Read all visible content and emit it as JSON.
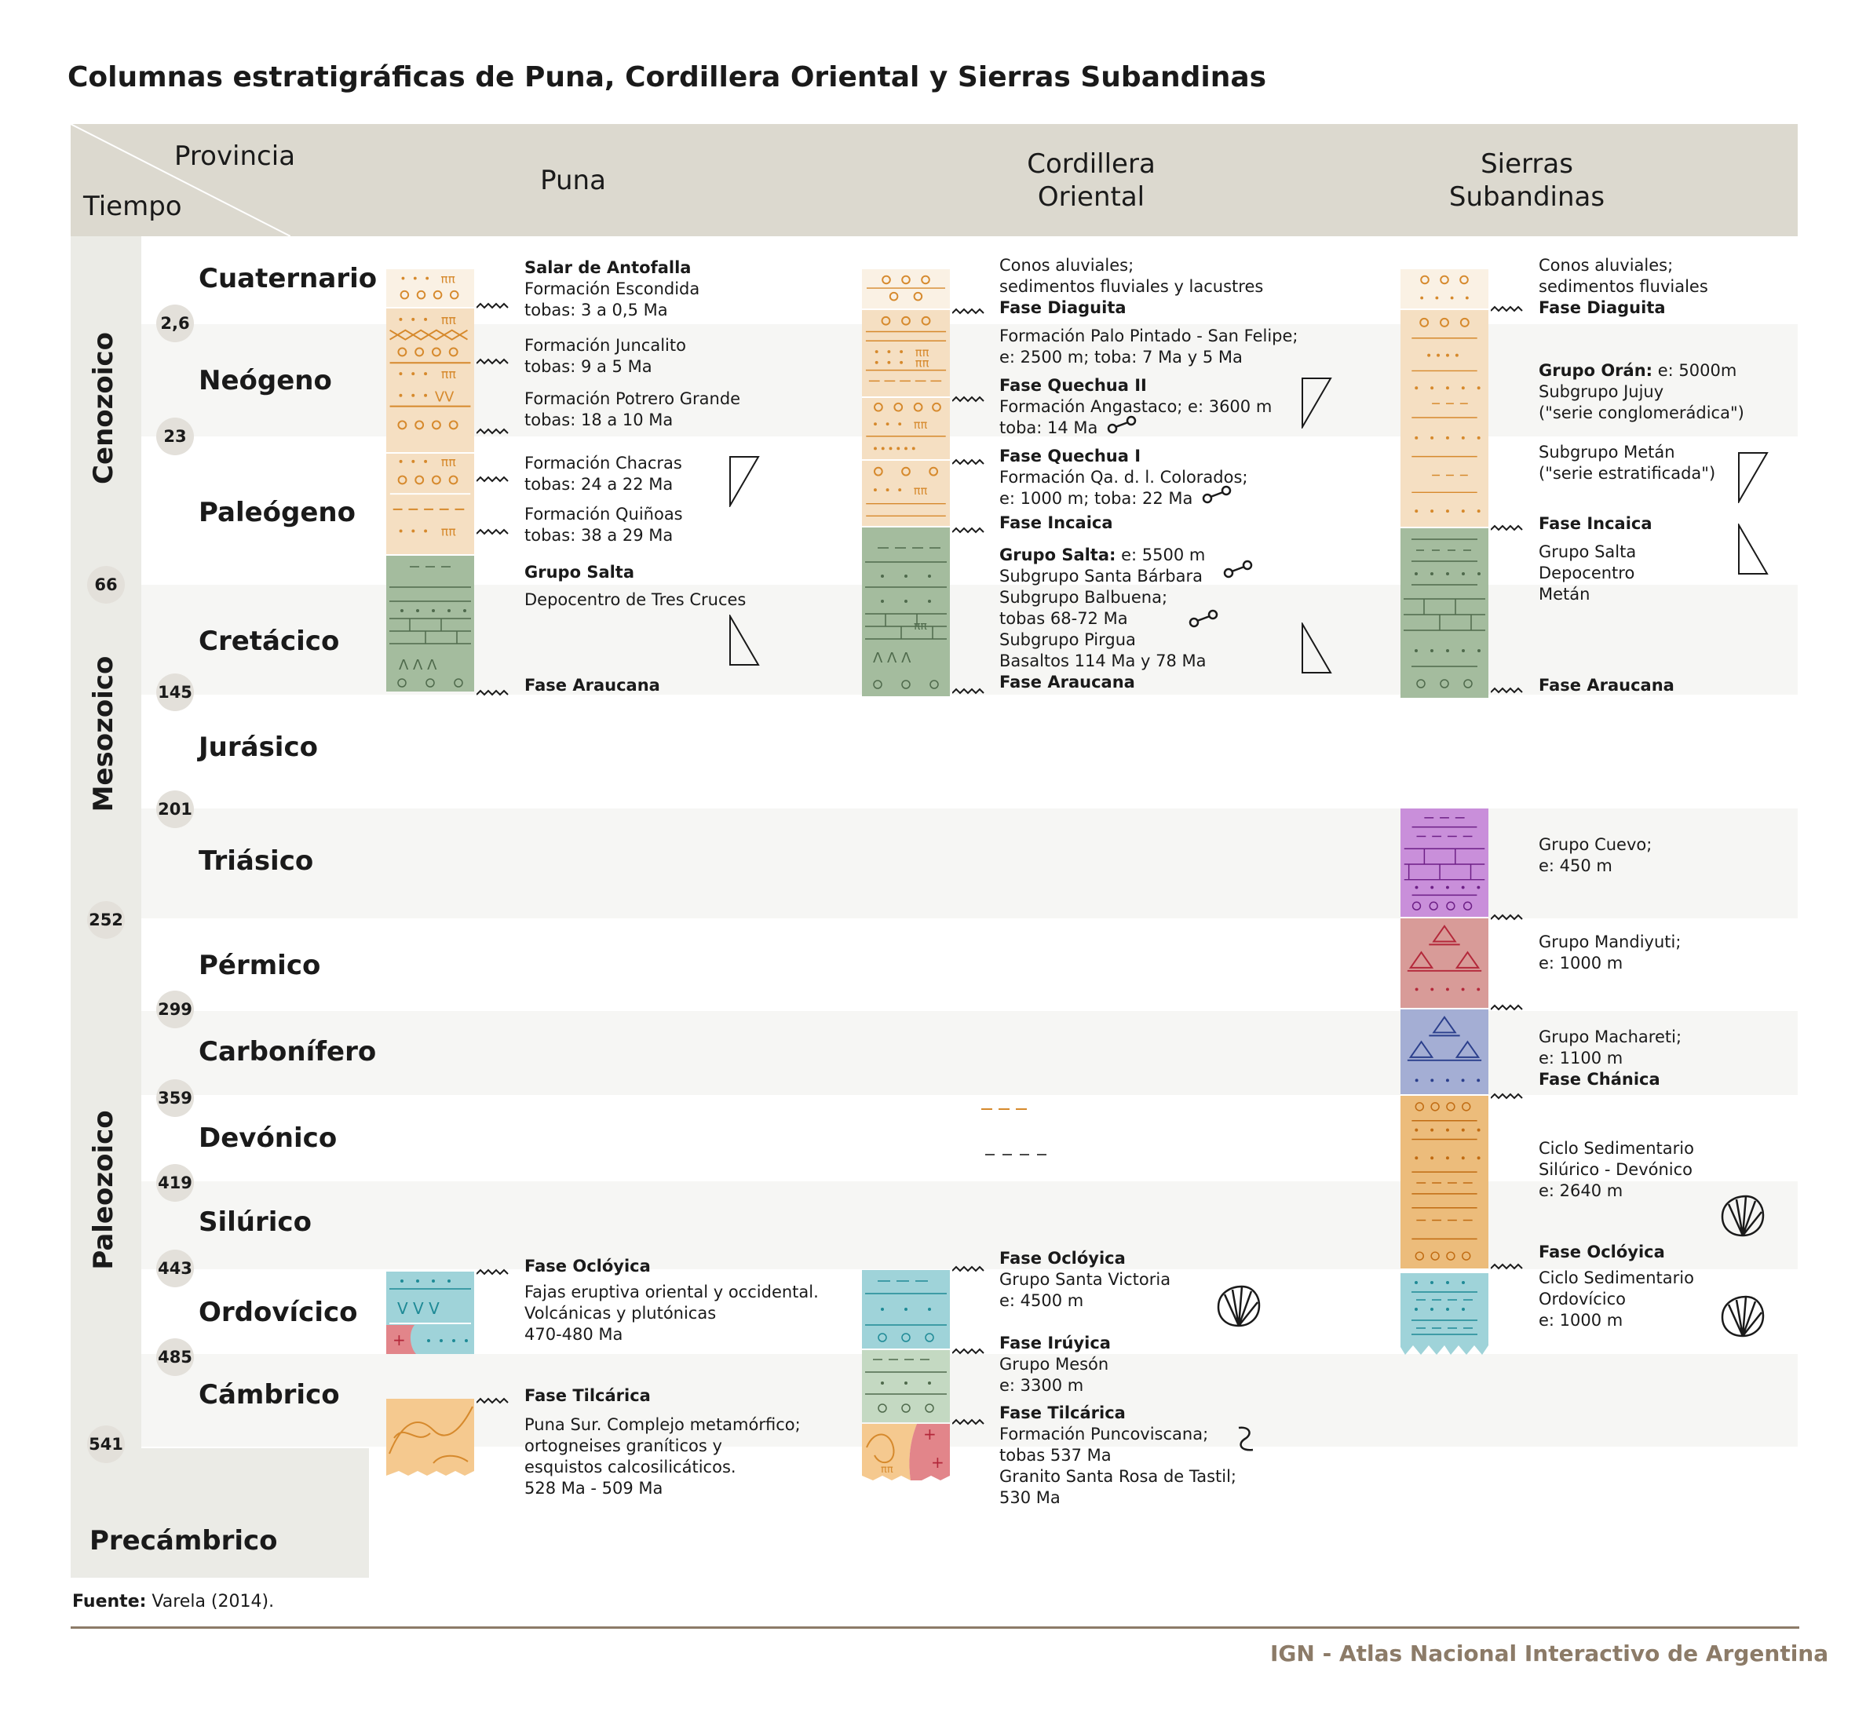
{
  "title": "Columnas estratigráficas de Puna, Cordillera Oriental y Sierras Subandinas",
  "header": {
    "provincia": "Provincia",
    "tiempo": "Tiempo",
    "puna": "Puna",
    "cordillera_1": "Cordillera",
    "cordillera_2": "Oriental",
    "sierras_1": "Sierras",
    "sierras_2": "Subandinas"
  },
  "eras": {
    "cenozoico": "Cenozoico",
    "mesozoico": "Mesozoico",
    "paleozoico": "Paleozoico",
    "precambrico": "Precámbrico"
  },
  "periods": {
    "cuaternario": "Cuaternario",
    "neogeno": "Neógeno",
    "paleogeno": "Paleógeno",
    "cretacico": "Cretácico",
    "jurasico": "Jurásico",
    "triasico": "Triásico",
    "permico": "Pérmico",
    "carbonifero": "Carbonífero",
    "devonico": "Devónico",
    "silurico": "Silúrico",
    "ordovicico": "Ordovícico",
    "cambrico": "Cámbrico"
  },
  "boundaries": {
    "b2_6": "2,6",
    "b23": "23",
    "b66": "66",
    "b145": "145",
    "b201": "201",
    "b252": "252",
    "b299": "299",
    "b359": "359",
    "b419": "419",
    "b443": "443",
    "b485": "485",
    "b541": "541"
  },
  "puna": {
    "l1": "Salar de Antofalla",
    "l2": "Formación Escondida",
    "l3": "tobas: 3 a 0,5 Ma",
    "l4": "Formación Juncalito",
    "l5": "tobas: 9 a 5 Ma",
    "l6": "Formación Potrero Grande",
    "l7": "tobas: 18 a 10 Ma",
    "l8": "Formación Chacras",
    "l9": "tobas: 24 a 22 Ma",
    "l10": "Formación Quiñoas",
    "l11": "tobas: 38 a 29 Ma",
    "l12": "Grupo Salta",
    "l13": "Depocentro de Tres Cruces",
    "l14": "Fase Araucana",
    "l15": "Fase Oclóyica",
    "l16": "Fajas eruptiva oriental y occidental.",
    "l17": "Volcánicas y plutónicas",
    "l18": "470-480 Ma",
    "l19": "Fase Tilcárica",
    "l20": "Puna Sur. Complejo metamórfico;",
    "l21": "ortogneises graníticos y",
    "l22": "esquistos calcosilicáticos.",
    "l23": "528 Ma - 509 Ma"
  },
  "cordillera": {
    "l1": "Conos aluviales;",
    "l2": "sedimentos fluviales y lacustres",
    "l3": "Fase Diaguita",
    "l4": "Formación Palo Pintado - San Felipe;",
    "l5": "e: 2500 m; toba: 7 Ma y 5 Ma",
    "l6": "Fase Quechua II",
    "l7": "Formación Angastaco; e: 3600 m",
    "l8": "toba: 14 Ma",
    "l9": "Fase Quechua I",
    "l10": "Formación Qa. d. l. Colorados;",
    "l11": "e: 1000 m; toba: 22 Ma",
    "l12": "Fase Incaica",
    "l13a": "Grupo Salta:",
    "l13b": " e: 5500 m",
    "l14": "Subgrupo Santa Bárbara",
    "l15": "Subgrupo Balbuena;",
    "l16": "tobas 68-72 Ma",
    "l17": "Subgrupo Pirgua",
    "l18": "Basaltos 114 Ma y 78 Ma",
    "l19": "Fase Araucana",
    "l20": "Fase Oclóyica",
    "l21": "Grupo Santa Victoria",
    "l22": "e: 4500 m",
    "l23": "Fase Irúyica",
    "l24": "Grupo Mesón",
    "l25": "e: 3300 m",
    "l26": "Fase Tilcárica",
    "l27": "Formación Puncoviscana;",
    "l28": "tobas 537 Ma",
    "l29": "Granito Santa Rosa de Tastil;",
    "l30": "530 Ma"
  },
  "sierras": {
    "l1": "Conos aluviales;",
    "l2": "sedimentos fluviales",
    "l3": "Fase Diaguita",
    "l4a": "Grupo Orán:",
    "l4b": " e: 5000m",
    "l5": "Subgrupo Jujuy",
    "l6": "(\"serie conglomerádica\")",
    "l7": "Subgrupo Metán",
    "l8": "(\"serie estratificada\")",
    "l9": "Fase Incaica",
    "l10": "Grupo Salta",
    "l11": "Depocentro",
    "l12": "Metán",
    "l13": "Fase Araucana",
    "l14": "Grupo Cuevo;",
    "l15": "e: 450 m",
    "l16": "Grupo Mandiyuti;",
    "l17": "e: 1000 m",
    "l18": "Grupo Machareti;",
    "l19": "e: 1100 m",
    "l20": "Fase Chánica",
    "l21": "Ciclo Sedimentario",
    "l22": "Silúrico - Devónico",
    "l23": "e: 2640 m",
    "l24": "Fase Oclóyica",
    "l25": "Ciclo Sedimentario",
    "l26": "Ordovícico",
    "l27": "e: 1000 m"
  },
  "colors": {
    "beige": "#f5dfc2",
    "beige_light": "#faf1e4",
    "orange_symbol": "#d6892c",
    "green": "#a4bc9e",
    "teal": "#9fd3d9",
    "purple": "#c98fda",
    "red": "#d89b98",
    "blue": "#a4aed4",
    "orange_col": "#ecbc7b",
    "pink_red": "#e2858a"
  },
  "source_label": "Fuente:",
  "source_value": " Varela (2014).",
  "credit": "IGN - Atlas Nacional Interactivo de Argentina"
}
